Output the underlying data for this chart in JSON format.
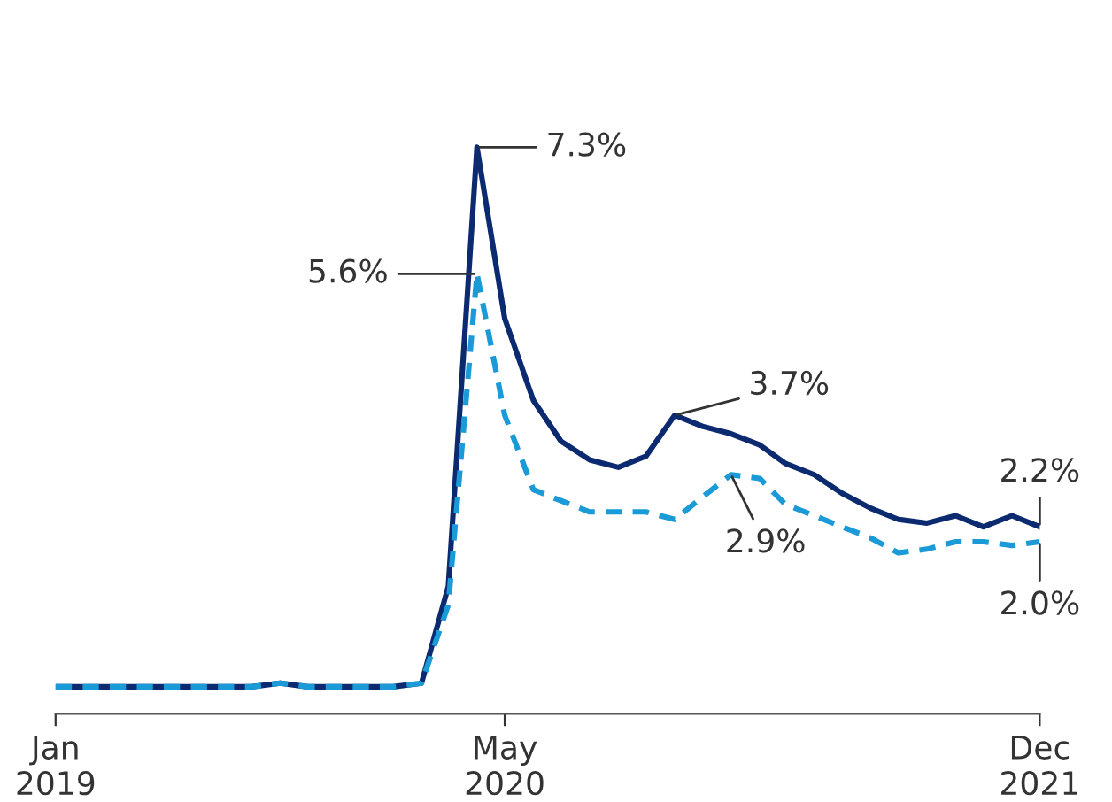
{
  "chart_data": {
    "type": "line",
    "x": [
      "2019-01",
      "2019-02",
      "2019-03",
      "2019-04",
      "2019-05",
      "2019-06",
      "2019-07",
      "2019-08",
      "2019-09",
      "2019-10",
      "2019-11",
      "2019-12",
      "2020-01",
      "2020-02",
      "2020-03",
      "2020-04",
      "2020-05",
      "2020-06",
      "2020-07",
      "2020-08",
      "2020-09",
      "2020-10",
      "2020-11",
      "2020-12",
      "2021-01",
      "2021-02",
      "2021-03",
      "2021-04",
      "2021-05",
      "2021-06",
      "2021-07",
      "2021-08",
      "2021-09",
      "2021-10",
      "2021-11",
      "2021-12"
    ],
    "series": [
      {
        "color": "#0b2a6f",
        "line_style": "solid",
        "values": [
          0.05,
          0.05,
          0.05,
          0.05,
          0.05,
          0.05,
          0.05,
          0.05,
          0.1,
          0.05,
          0.05,
          0.05,
          0.05,
          0.1,
          1.4,
          7.3,
          5.0,
          3.9,
          3.35,
          3.1,
          3.0,
          3.15,
          3.7,
          3.55,
          3.45,
          3.3,
          3.05,
          2.9,
          2.65,
          2.45,
          2.3,
          2.25,
          2.35,
          2.2,
          2.35,
          2.2
        ],
        "value_labels": [
          null,
          null,
          null,
          null,
          null,
          null,
          null,
          null,
          null,
          null,
          null,
          null,
          null,
          null,
          null,
          "7.3%",
          null,
          null,
          null,
          null,
          null,
          null,
          "3.7%",
          null,
          null,
          null,
          null,
          null,
          null,
          null,
          null,
          null,
          null,
          null,
          null,
          "2.2%"
        ]
      },
      {
        "color": "#1a9ad6",
        "line_style": "dashed",
        "values": [
          0.05,
          0.05,
          0.05,
          0.05,
          0.05,
          0.05,
          0.05,
          0.05,
          0.1,
          0.05,
          0.05,
          0.05,
          0.05,
          0.1,
          1.15,
          5.6,
          3.7,
          2.7,
          2.55,
          2.4,
          2.4,
          2.4,
          2.3,
          2.6,
          2.9,
          2.85,
          2.5,
          2.35,
          2.2,
          2.05,
          1.85,
          1.9,
          2.0,
          2.0,
          1.95,
          2.0
        ],
        "value_labels": [
          null,
          null,
          null,
          null,
          null,
          null,
          null,
          null,
          null,
          null,
          null,
          null,
          null,
          null,
          null,
          "5.6%",
          null,
          null,
          null,
          null,
          null,
          null,
          null,
          null,
          "2.9%",
          null,
          null,
          null,
          null,
          null,
          null,
          null,
          null,
          null,
          null,
          "2.0%"
        ]
      }
    ],
    "xlim": [
      "2019-01",
      "2021-12"
    ],
    "xticks": [
      {
        "value": "2019-01",
        "label": "Jan\n2019"
      },
      {
        "value": "2020-05",
        "label": "May\n2020"
      },
      {
        "value": "2021-12",
        "label": "Dec\n2021"
      }
    ],
    "tick_labels": "x",
    "grid": false,
    "legend": false,
    "marker": "none"
  }
}
